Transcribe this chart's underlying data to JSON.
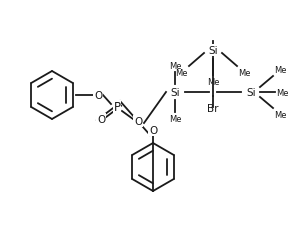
{
  "bg_color": "#ffffff",
  "line_color": "#1a1a1a",
  "line_width": 1.3,
  "font_size": 7.5,
  "fig_width": 3.03,
  "fig_height": 2.26,
  "dpi": 100,
  "xlim": [
    0,
    303
  ],
  "ylim": [
    0,
    226
  ]
}
